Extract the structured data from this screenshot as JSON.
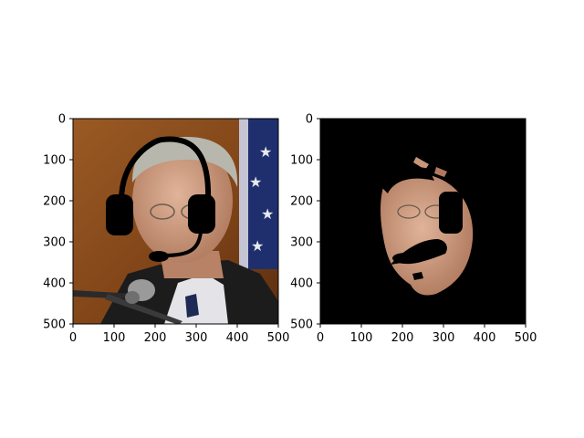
{
  "chart_data": [
    {
      "type": "image",
      "panel": "left",
      "description_note": "photo with black headset overlay",
      "xlim": [
        0,
        500
      ],
      "ylim": [
        500,
        0
      ],
      "xticks": [
        0,
        100,
        200,
        300,
        400,
        500
      ],
      "yticks": [
        0,
        100,
        200,
        300,
        400,
        500
      ],
      "xlabel": "",
      "ylabel": "",
      "title": ""
    },
    {
      "type": "image",
      "panel": "right",
      "description_note": "segmentation mask on black background",
      "xlim": [
        0,
        500
      ],
      "ylim": [
        500,
        0
      ],
      "xticks": [
        0,
        100,
        200,
        300,
        400,
        500
      ],
      "yticks": [
        0,
        100,
        200,
        300,
        400,
        500
      ],
      "xlabel": "",
      "ylabel": "",
      "title": ""
    }
  ],
  "colors": {
    "background_left": "#8a4b1c",
    "flag_blue": "#1f2f6e",
    "skin": "#c9967a",
    "hair": "#b7b7ad",
    "suit": "#1c1c1c",
    "mask_black": "#000000",
    "axis": "#000000"
  }
}
